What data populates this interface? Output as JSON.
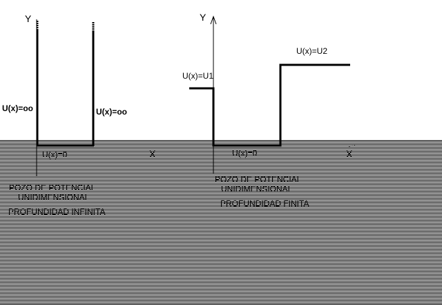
{
  "colors": {
    "background": "#ffffff",
    "ink": "#000000",
    "scanline": "#000000"
  },
  "infinite_well": {
    "y_axis_label": "Y",
    "x_axis_label": "X",
    "left_wall_potential": "U(x)=oo",
    "right_wall_potential": "U(x)=oo",
    "bottom_potential": "U(x)=0",
    "caption_line1": "POZO DE POTENCIAL",
    "caption_line2": "UNIDIMENSIONAL",
    "caption_line3": "PROFUNDIDAD INFINITA"
  },
  "finite_well": {
    "y_axis_label": "Y",
    "x_axis_label": "X",
    "left_step_potential": "U(x)=U1",
    "right_step_potential": "U(x)=U2",
    "bottom_potential": "U(x)=0",
    "caption_line1": "POZO DE POTENCIAL",
    "caption_line2": "UNIDIMENSIONAL",
    "caption_line3": "PROFUNDIDAD FINITA"
  }
}
